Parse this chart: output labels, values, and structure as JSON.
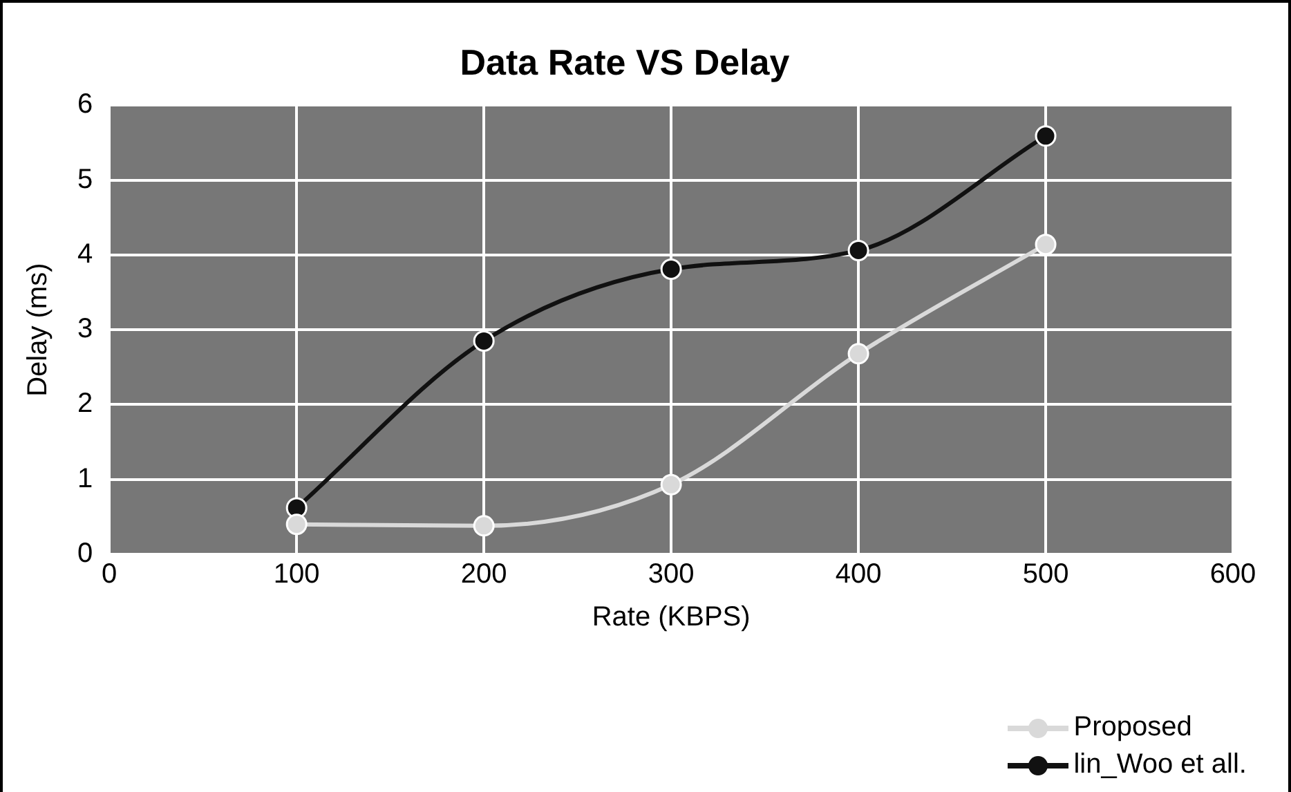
{
  "chart_data": {
    "type": "line",
    "title": "Data Rate VS Delay",
    "xlabel": "Rate (KBPS)",
    "ylabel": "Delay (ms)",
    "x": [
      100,
      200,
      300,
      400,
      500
    ],
    "series": [
      {
        "name": "Proposed",
        "color": "#d9d9d9",
        "values": [
          0.4,
          0.38,
          0.93,
          2.68,
          4.14
        ]
      },
      {
        "name": "lin_Woo et all.",
        "color": "#111111",
        "values": [
          0.62,
          2.85,
          3.81,
          4.06,
          5.59
        ]
      }
    ],
    "xlim": [
      0,
      600
    ],
    "xticks": [
      0,
      100,
      200,
      300,
      400,
      500,
      600
    ],
    "ylim": [
      0,
      6
    ],
    "yticks": [
      0,
      1,
      2,
      3,
      4,
      5,
      6
    ],
    "grid": true,
    "legend": "bottom right",
    "marker": "circle",
    "line_style": "solid"
  }
}
